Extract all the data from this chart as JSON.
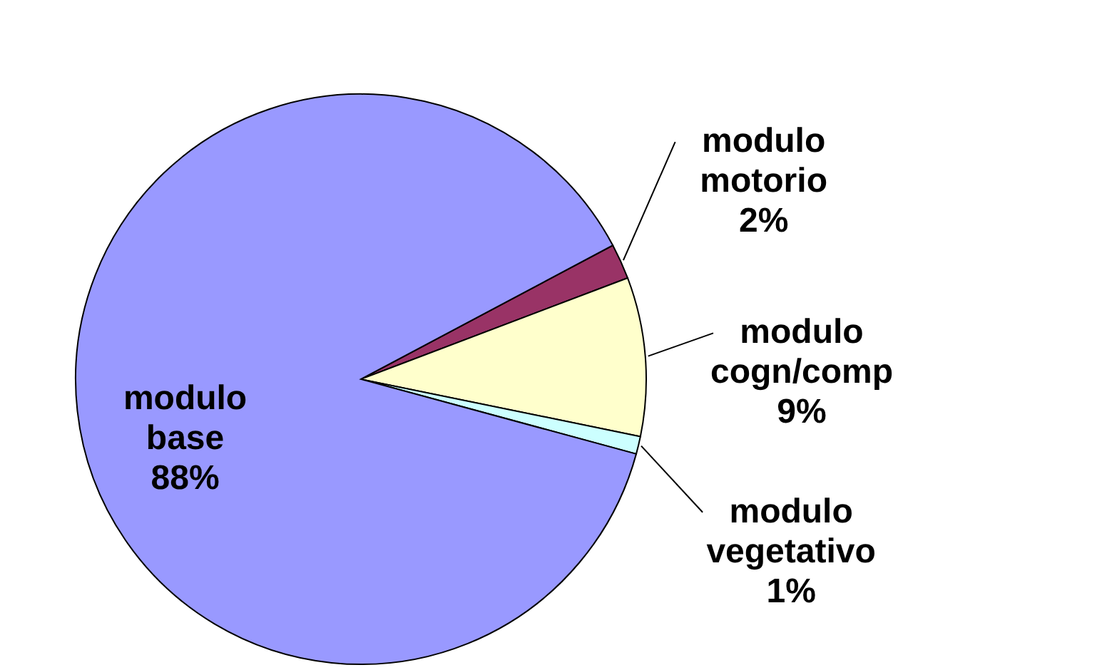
{
  "chart_data": {
    "type": "pie",
    "categories": [
      "modulo motorio",
      "modulo cogn/comp",
      "modulo vegetativo",
      "modulo base"
    ],
    "values": [
      2,
      9,
      1,
      88
    ],
    "colors": [
      "#993366",
      "#ffffcc",
      "#ccffff",
      "#9999ff"
    ],
    "value_labels": [
      "2%",
      "9%",
      "1%",
      "88%"
    ]
  }
}
